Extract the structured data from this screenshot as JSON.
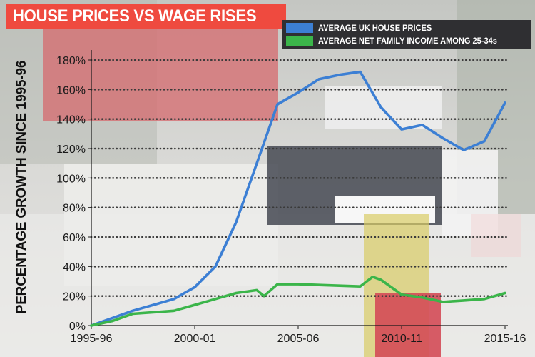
{
  "title": "HOUSE PRICES VS WAGE RISES",
  "colors": {
    "title_bg": "#ef4a3f",
    "legend_bg": "#2f2f32",
    "house_prices": "#3c7fd4",
    "income": "#3bb54a",
    "grid_dots": "#3a3a3a",
    "axis_text": "#1a1a1a"
  },
  "chart_data": {
    "type": "line",
    "title": "HOUSE PRICES VS WAGE RISES",
    "xlabel": "",
    "ylabel": "PERCENTAGE GROWTH SINCE 1995-96",
    "x": [
      1995,
      1996,
      1997,
      1998,
      1999,
      2000,
      2001,
      2002,
      2003,
      2004,
      2005,
      2006,
      2007,
      2008,
      2009,
      2010,
      2011,
      2012,
      2013,
      2014,
      2015
    ],
    "x_tick_values": [
      1995,
      2000,
      2005,
      2010,
      2015
    ],
    "x_tick_labels": [
      "1995-96",
      "2000-01",
      "2005-06",
      "2010-11",
      "2015-16"
    ],
    "y_ticks": [
      0,
      20,
      40,
      60,
      80,
      100,
      120,
      140,
      160,
      180
    ],
    "y_tick_labels": [
      "0%",
      "20%",
      "40%",
      "60%",
      "80%",
      "100%",
      "120%",
      "140%",
      "160%",
      "180%"
    ],
    "ylim": [
      0,
      180
    ],
    "xlim": [
      1995,
      2015
    ],
    "grid": "horizontal dotted",
    "legend_position": "top-right",
    "series": [
      {
        "name": "AVERAGE UK HOUSE PRICES",
        "color": "#3c7fd4",
        "points": [
          [
            1995,
            0
          ],
          [
            1996,
            5
          ],
          [
            1997,
            10
          ],
          [
            1998,
            14
          ],
          [
            1999,
            18
          ],
          [
            2000,
            26
          ],
          [
            2001,
            40
          ],
          [
            2002,
            70
          ],
          [
            2003,
            110
          ],
          [
            2004,
            150
          ],
          [
            2005,
            158
          ],
          [
            2006,
            167
          ],
          [
            2007,
            170
          ],
          [
            2008,
            172
          ],
          [
            2009,
            148
          ],
          [
            2010,
            133
          ],
          [
            2011,
            136
          ],
          [
            2012,
            127
          ],
          [
            2013,
            119
          ],
          [
            2014,
            125
          ],
          [
            2015,
            151
          ]
        ]
      },
      {
        "name": "AVERAGE NET FAMILY INCOME AMONG 25-34s",
        "color": "#3bb54a",
        "points": [
          [
            1995,
            0
          ],
          [
            1996,
            3
          ],
          [
            1997,
            8
          ],
          [
            1998,
            9
          ],
          [
            1999,
            10
          ],
          [
            2000,
            14
          ],
          [
            2001,
            18
          ],
          [
            2002,
            22
          ],
          [
            2003,
            24
          ],
          [
            2003.35,
            20
          ],
          [
            2004,
            28
          ],
          [
            2005,
            28
          ],
          [
            2006,
            27.5
          ],
          [
            2007,
            27
          ],
          [
            2008,
            26.5
          ],
          [
            2008.6,
            33
          ],
          [
            2009,
            31
          ],
          [
            2010,
            21
          ],
          [
            2011,
            19
          ],
          [
            2012,
            16
          ],
          [
            2013,
            17
          ],
          [
            2014,
            18
          ],
          [
            2015,
            22
          ]
        ]
      }
    ]
  }
}
